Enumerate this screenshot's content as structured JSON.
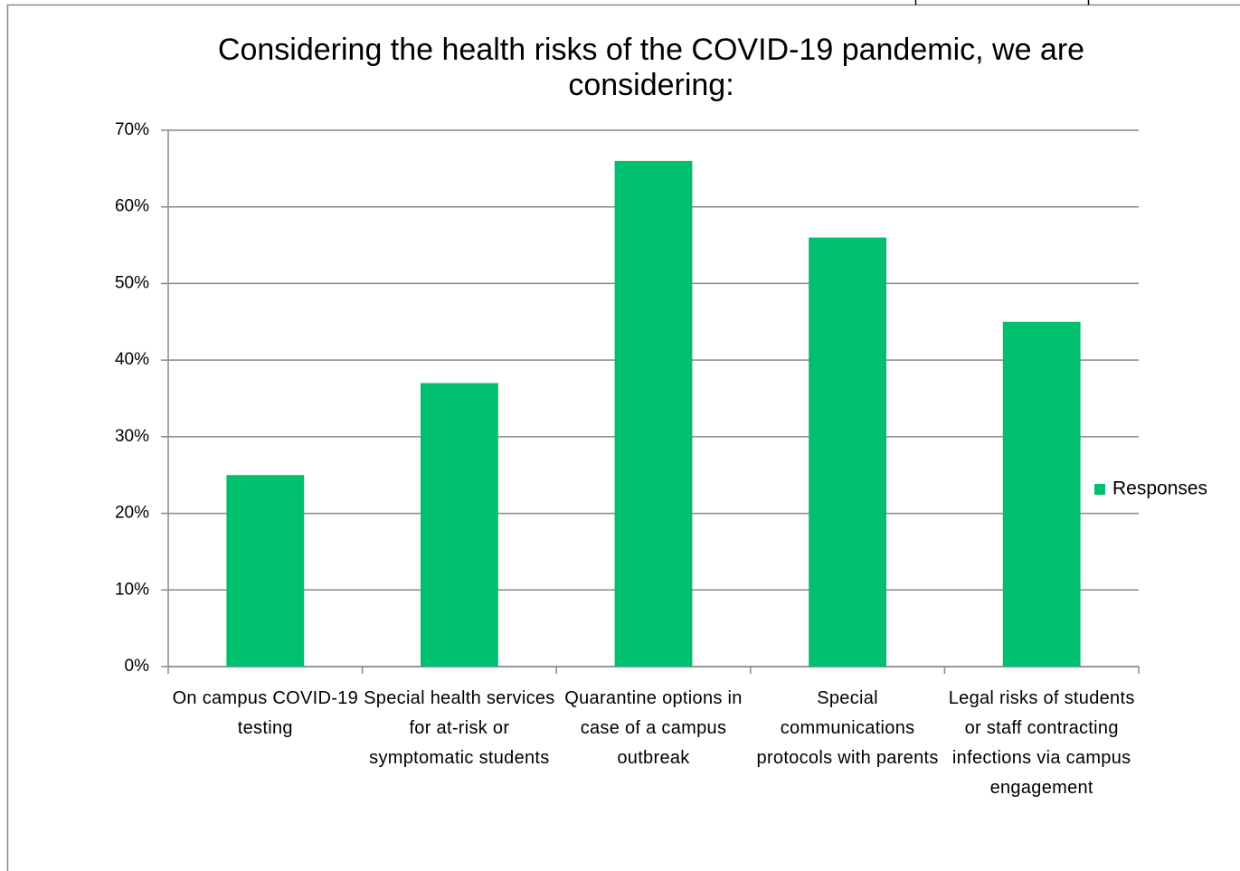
{
  "chart_data": {
    "type": "bar",
    "title": "Considering the health risks of the COVID-19 pandemic, we are considering:",
    "categories": [
      "On campus COVID-19 testing",
      "Special health services for at-risk or symptomatic students",
      "Quarantine options in case of a campus outbreak",
      "Special communications protocols with parents",
      "Legal risks of students or staff contracting infections via campus engagement"
    ],
    "series": [
      {
        "name": "Responses",
        "color": "#00c06f",
        "values": [
          25,
          37,
          66,
          56,
          45
        ]
      }
    ],
    "ylim": [
      0,
      70
    ],
    "yticks": [
      {
        "value": 0,
        "label": "0%"
      },
      {
        "value": 10,
        "label": "10%"
      },
      {
        "value": 20,
        "label": "20%"
      },
      {
        "value": 30,
        "label": "30%"
      },
      {
        "value": 40,
        "label": "40%"
      },
      {
        "value": 50,
        "label": "50%"
      },
      {
        "value": 60,
        "label": "60%"
      },
      {
        "value": 70,
        "label": "70%"
      }
    ],
    "grid": true,
    "legend": "right"
  }
}
